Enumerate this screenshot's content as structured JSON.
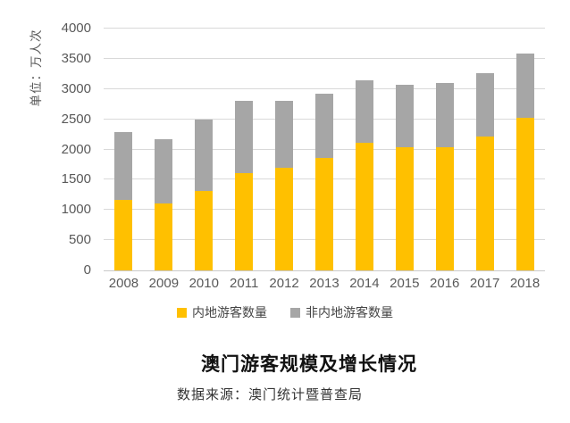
{
  "title": "澳门游客规模及增长情况",
  "source": "数据来源：澳门统计暨普查局",
  "colors": {
    "mainland": "#FFC000",
    "non_mainland": "#A6A6A6",
    "axis_text": "#595959",
    "gridline": "#D9D9D9"
  },
  "chart_data": {
    "type": "bar",
    "stacked": true,
    "title": "澳门游客规模及增长情况",
    "ylabel": "单位：万人次",
    "xlabel": "",
    "ylim": [
      0,
      4000
    ],
    "ytick_interval": 500,
    "grid": true,
    "legend_position": "bottom",
    "categories": [
      "2008",
      "2009",
      "2010",
      "2011",
      "2012",
      "2013",
      "2014",
      "2015",
      "2016",
      "2017",
      "2018"
    ],
    "series": [
      {
        "name": "内地游客数量",
        "color": "#FFC000",
        "values": [
          1160,
          1100,
          1320,
          1610,
          1700,
          1860,
          2110,
          2040,
          2040,
          2210,
          2530
        ]
      },
      {
        "name": "非内地游客数量",
        "color": "#A6A6A6",
        "values": [
          1130,
          1070,
          1180,
          1190,
          1110,
          1070,
          1040,
          1030,
          1060,
          1050,
          1050
        ]
      }
    ],
    "totals": [
      2290,
      2170,
      2500,
      2800,
      2810,
      2930,
      3150,
      3070,
      3100,
      3260,
      3580
    ]
  }
}
